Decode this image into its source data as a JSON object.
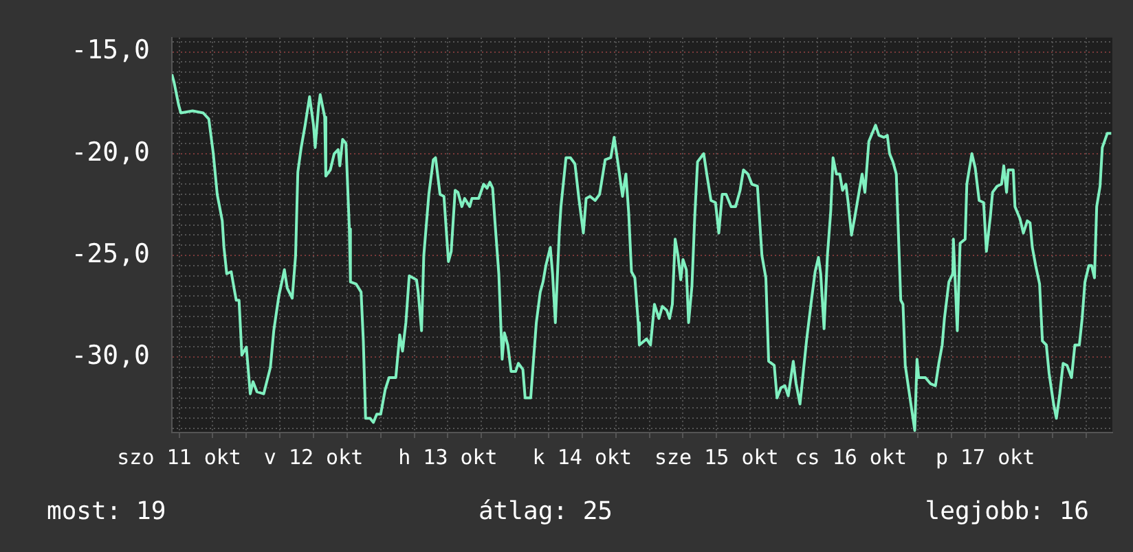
{
  "chart_data": {
    "type": "line",
    "color": "#80f0c0",
    "x": [
      "--10-11T10:42",
      "--10-11T11:06",
      "--10-11T11:54",
      "--10-11T12:18",
      "--10-11T14:24",
      "--10-11T16:18",
      "--10-11T17:18",
      "--10-11T18:06",
      "--10-11T18:48",
      "--10-11T19:42",
      "--10-11T20:00",
      "--10-11T20:30",
      "--10-11T21:18",
      "--10-11T21:48",
      "--10-11T22:12",
      "--10-11T22:42",
      "--10-11T23:12",
      "--10-12T00:00",
      "--10-12T00:42",
      "--10-12T01:12",
      "--10-12T01:54",
      "--10-12T03:06",
      "--10-12T04:18",
      "--10-12T04:54",
      "--10-12T05:48",
      "--10-12T06:48",
      "--10-12T07:18",
      "--10-12T08:12",
      "--10-12T08:48",
      "--10-12T09:12",
      "--10-12T09:48",
      "--10-12T10:30",
      "--10-12T11:18",
      "--10-12T12:00",
      "--10-12T12:18",
      "--10-12T12:54",
      "--10-12T13:12",
      "--10-12T14:00",
      "--10-12T14:12",
      "--10-12T15:00",
      "--10-12T15:42",
      "--10-12T16:24",
      "--10-12T16:42",
      "--10-12T17:12",
      "--10-12T17:48",
      "--10-12T18:24",
      "--10-12T18:36",
      "--10-12T19:36",
      "--10-12T20:30",
      "--10-12T20:54",
      "--10-12T21:18",
      "--10-12T22:06",
      "--10-12T22:42",
      "--10-12T23:18",
      "--10-13T00:00",
      "--10-13T00:48",
      "--10-13T01:30",
      "--10-13T02:42",
      "--10-13T03:24",
      "--10-13T03:54",
      "--10-13T04:30",
      "--10-13T05:06",
      "--10-13T06:24",
      "--10-13T06:42",
      "--10-13T07:18",
      "--10-13T07:42",
      "--10-13T08:36",
      "--10-13T09:24",
      "--10-13T09:48",
      "--10-13T10:36",
      "--10-13T11:18",
      "--10-13T12:06",
      "--10-13T12:36",
      "--10-13T13:18",
      "--10-13T13:48",
      "--10-13T14:30",
      "--10-13T15:00",
      "--10-13T15:54",
      "--10-13T16:18",
      "--10-13T17:30",
      "--10-13T18:24",
      "--10-13T19:00",
      "--10-13T19:30",
      "--10-13T20:00",
      "--10-13T20:24",
      "--10-13T21:06",
      "--10-13T21:42",
      "--10-13T22:06",
      "--10-13T22:42",
      "--10-13T23:18",
      "--10-14T00:06",
      "--10-14T00:36",
      "--10-14T01:24",
      "--10-14T01:48",
      "--10-14T02:48",
      "--10-14T03:12",
      "--10-14T03:48",
      "--10-14T04:30",
      "--10-14T05:00",
      "--10-14T05:30",
      "--10-14T06:18",
      "--10-14T06:42",
      "--10-14T07:12",
      "--10-14T07:54",
      "--10-14T08:12",
      "--10-14T09:06",
      "--10-14T09:54",
      "--10-14T10:42",
      "--10-14T11:24",
      "--10-14T12:12",
      "--10-14T12:42",
      "--10-14T13:24",
      "--10-14T14:18",
      "--10-14T15:06",
      "--10-14T16:06",
      "--10-14T17:06",
      "--10-14T17:42",
      "--10-14T18:18",
      "--10-14T19:12",
      "--10-14T19:48",
      "--10-14T20:18",
      "--10-14T20:48",
      "--10-14T21:24",
      "--10-14T22:00",
      "--10-14T22:12",
      "--10-14T23:30",
      "--10-15T00:12",
      "--10-15T00:54",
      "--10-15T01:42",
      "--10-15T02:18",
      "--10-15T03:06",
      "--10-15T03:36",
      "--10-15T04:06",
      "--10-15T04:36",
      "--10-15T05:06",
      "--10-15T05:36",
      "--10-15T06:00",
      "--10-15T06:36",
      "--10-15T07:00",
      "--10-15T07:36",
      "--10-15T08:06",
      "--10-15T08:36",
      "--10-15T09:42",
      "--10-15T10:18",
      "--10-15T11:00",
      "--10-15T11:48",
      "--10-15T12:24",
      "--10-15T13:00",
      "--10-15T13:42",
      "--10-15T14:36",
      "--10-15T15:24",
      "--10-15T16:12",
      "--10-15T16:48",
      "--10-15T17:36",
      "--10-15T18:18",
      "--10-15T19:18",
      "--10-15T20:06",
      "--10-15T20:48",
      "--10-15T21:18",
      "--10-15T22:18",
      "--10-15T22:48",
      "--10-15T23:30",
      "--10-16T00:12",
      "--10-16T00:48",
      "--10-16T01:42",
      "--10-16T02:12",
      "--10-16T02:54",
      "--10-16T03:30",
      "--10-16T04:06",
      "--10-16T04:54",
      "--10-16T05:36",
      "--10-16T06:12",
      "--10-16T06:36",
      "--10-16T07:12",
      "--10-16T07:48",
      "--10-16T08:24",
      "--10-16T08:48",
      "--10-16T09:24",
      "--10-16T10:00",
      "--10-16T10:30",
      "--10-16T11:06",
      "--10-16T11:30",
      "--10-16T12:06",
      "--10-16T12:42",
      "--10-16T13:30",
      "--10-16T14:00",
      "--10-16T14:30",
      "--10-16T15:12",
      "--10-16T15:30",
      "--10-16T16:24",
      "--10-16T17:00",
      "--10-16T17:54",
      "--10-16T18:30",
      "--10-16T18:54",
      "--10-16T19:30",
      "--10-16T20:06",
      "--10-16T20:24",
      "--10-16T20:54",
      "--10-16T21:18",
      "--10-16T21:42",
      "--10-16T22:36",
      "--10-16T23:24",
      "--10-16T23:48",
      "--10-17T00:06",
      "--10-17T01:18",
      "--10-17T02:12",
      "--10-17T03:06",
      "--10-17T03:42",
      "--10-17T04:18",
      "--10-17T04:42",
      "--10-17T05:30",
      "--10-17T06:12",
      "--10-17T06:18",
      "--10-17T07:00",
      "--10-17T07:30",
      "--10-17T08:24",
      "--10-17T08:42",
      "--10-17T09:36",
      "--10-17T10:12",
      "--10-17T10:54",
      "--10-17T11:42",
      "--10-17T12:12",
      "--10-17T12:54",
      "--10-17T13:18",
      "--10-17T14:06",
      "--10-17T14:54",
      "--10-17T15:18",
      "--10-17T15:48",
      "--10-17T16:06",
      "--10-17T17:00",
      "--10-17T17:18",
      "--10-17T18:12",
      "--10-17T18:48",
      "--10-17T19:30",
      "--10-17T20:00",
      "--10-17T20:24",
      "--10-17T21:00",
      "--10-17T21:42",
      "--10-17T22:12",
      "--10-17T22:54",
      "--10-17T23:24",
      "--10-18T00:12",
      "--10-18T00:42",
      "--10-18T01:18",
      "--10-18T01:54",
      "--10-18T02:36",
      "--10-18T03:24",
      "--10-18T04:00",
      "--10-18T04:48",
      "--10-18T05:18",
      "--10-18T05:48",
      "--10-18T06:30",
      "--10-18T07:00",
      "--10-18T07:30",
      "--10-18T07:54",
      "--10-18T08:30",
      "--10-18T08:54",
      "--10-18T09:48",
      "--10-18T10:30"
    ],
    "values": [
      -16.1,
      -16.5,
      -17.6,
      -18.0,
      -17.9,
      -18.0,
      -18.3,
      -20.0,
      -22.0,
      -23.3,
      -24.6,
      -25.9,
      -25.8,
      -26.6,
      -27.2,
      -27.2,
      -29.9,
      -29.5,
      -31.8,
      -31.2,
      -31.7,
      -31.8,
      -30.5,
      -28.7,
      -27.0,
      -25.7,
      -26.6,
      -27.1,
      -25.0,
      -20.9,
      -19.7,
      -18.6,
      -17.2,
      -18.6,
      -19.7,
      -17.7,
      -17.1,
      -18.2,
      -21.1,
      -20.8,
      -20.0,
      -19.8,
      -20.6,
      -19.3,
      -19.5,
      -23.7,
      -26.3,
      -26.4,
      -26.8,
      -29.2,
      -33.0,
      -33.0,
      -33.2,
      -32.8,
      -32.8,
      -31.6,
      -31.0,
      -31.0,
      -28.9,
      -29.7,
      -28.3,
      -26.0,
      -26.2,
      -26.8,
      -28.7,
      -25.0,
      -22.0,
      -20.3,
      -20.2,
      -22.0,
      -22.1,
      -25.3,
      -24.8,
      -21.8,
      -21.9,
      -22.6,
      -22.2,
      -22.6,
      -22.2,
      -22.2,
      -21.5,
      -21.7,
      -21.4,
      -21.7,
      -23.3,
      -25.9,
      -30.1,
      -28.8,
      -29.4,
      -30.7,
      -30.7,
      -30.3,
      -30.6,
      -32.0,
      -32.0,
      -30.5,
      -28.3,
      -26.8,
      -26.3,
      -25.5,
      -24.6,
      -25.9,
      -28.3,
      -23.9,
      -22.6,
      -20.2,
      -20.2,
      -20.5,
      -22.2,
      -23.9,
      -22.2,
      -22.1,
      -22.3,
      -22.0,
      -20.3,
      -20.2,
      -19.2,
      -20.3,
      -22.1,
      -21.0,
      -22.9,
      -25.8,
      -26.1,
      -28.3,
      -29.4,
      -29.1,
      -29.4,
      -27.4,
      -28.1,
      -27.5,
      -27.7,
      -28.1,
      -27.4,
      -24.2,
      -25.0,
      -26.2,
      -25.2,
      -25.7,
      -28.3,
      -26.5,
      -23.1,
      -20.4,
      -20.0,
      -21.1,
      -22.3,
      -22.4,
      -23.9,
      -22.0,
      -22.0,
      -22.6,
      -22.6,
      -21.8,
      -20.8,
      -21.0,
      -21.5,
      -21.6,
      -25.0,
      -26.1,
      -30.2,
      -30.4,
      -32.0,
      -31.5,
      -31.4,
      -31.9,
      -30.2,
      -31.3,
      -32.3,
      -30.7,
      -29.1,
      -27.3,
      -25.8,
      -25.1,
      -25.9,
      -28.6,
      -25.0,
      -22.8,
      -20.2,
      -21.0,
      -21.0,
      -21.8,
      -21.5,
      -22.4,
      -24.0,
      -23.1,
      -21.8,
      -21.0,
      -21.9,
      -19.4,
      -19.2,
      -18.6,
      -19.1,
      -19.2,
      -19.1,
      -20.0,
      -20.4,
      -21.0,
      -23.3,
      -27.2,
      -27.4,
      -30.4,
      -32.1,
      -33.6,
      -30.1,
      -31.0,
      -31.0,
      -31.3,
      -31.4,
      -30.3,
      -29.4,
      -28.1,
      -26.3,
      -25.9,
      -24.2,
      -28.7,
      -24.4,
      -24.2,
      -21.5,
      -20.0,
      -20.7,
      -22.3,
      -22.4,
      -24.8,
      -23.1,
      -21.9,
      -21.6,
      -21.5,
      -20.6,
      -21.9,
      -20.8,
      -20.8,
      -22.6,
      -23.2,
      -23.9,
      -23.3,
      -23.4,
      -24.6,
      -25.5,
      -26.4,
      -29.2,
      -29.4,
      -30.8,
      -32.3,
      -33.0,
      -31.8,
      -30.3,
      -30.4,
      -31.0,
      -29.4,
      -29.4,
      -28.1,
      -26.3,
      -25.5,
      -25.5,
      -26.1,
      -22.6,
      -21.6,
      -19.7,
      -19.0,
      -19.0
    ],
    "xlim": [
      "--10-11T10:42",
      "--10-18T10:42"
    ],
    "ylim": [
      -33.7,
      -14.3
    ],
    "xticks": [
      {
        "value": "--10-11T12:00",
        "label": "szo 11 okt"
      },
      {
        "value": "--10-11T18:00",
        "label": null
      },
      {
        "value": "--10-12T00:00",
        "label": null
      },
      {
        "value": "--10-12T06:00",
        "label": null
      },
      {
        "value": "--10-12T12:00",
        "label": "v 12 okt"
      },
      {
        "value": "--10-12T18:00",
        "label": null
      },
      {
        "value": "--10-13T00:00",
        "label": null
      },
      {
        "value": "--10-13T06:00",
        "label": null
      },
      {
        "value": "--10-13T12:00",
        "label": "h 13 okt"
      },
      {
        "value": "--10-13T18:00",
        "label": null
      },
      {
        "value": "--10-14T00:00",
        "label": null
      },
      {
        "value": "--10-14T06:00",
        "label": null
      },
      {
        "value": "--10-14T12:00",
        "label": "k 14 okt"
      },
      {
        "value": "--10-14T18:00",
        "label": null
      },
      {
        "value": "--10-15T00:00",
        "label": null
      },
      {
        "value": "--10-15T06:00",
        "label": null
      },
      {
        "value": "--10-15T12:00",
        "label": "sze 15 okt"
      },
      {
        "value": "--10-15T18:00",
        "label": null
      },
      {
        "value": "--10-16T00:00",
        "label": null
      },
      {
        "value": "--10-16T06:00",
        "label": null
      },
      {
        "value": "--10-16T12:00",
        "label": "cs 16 okt"
      },
      {
        "value": "--10-16T18:00",
        "label": null
      },
      {
        "value": "--10-17T00:00",
        "label": null
      },
      {
        "value": "--10-17T06:00",
        "label": null
      },
      {
        "value": "--10-17T12:00",
        "label": "p 17 okt"
      },
      {
        "value": "--10-17T18:00",
        "label": null
      },
      {
        "value": "--10-18T00:00",
        "label": null
      },
      {
        "value": "--10-18T06:00",
        "label": null
      }
    ],
    "yticks": [
      {
        "value": -33.5,
        "label": null
      },
      {
        "value": -33,
        "label": null
      },
      {
        "value": -32.5,
        "label": null
      },
      {
        "value": -32,
        "label": null
      },
      {
        "value": -31.5,
        "label": null
      },
      {
        "value": -31,
        "label": null
      },
      {
        "value": -30.5,
        "label": null
      },
      {
        "value": -30,
        "label": "-30,0"
      },
      {
        "value": -29.5,
        "label": null
      },
      {
        "value": -29,
        "label": null
      },
      {
        "value": -28.5,
        "label": null
      },
      {
        "value": -28,
        "label": null
      },
      {
        "value": -27.5,
        "label": null
      },
      {
        "value": -27,
        "label": null
      },
      {
        "value": -26.5,
        "label": null
      },
      {
        "value": -26,
        "label": null
      },
      {
        "value": -25.5,
        "label": null
      },
      {
        "value": -25,
        "label": "-25,0"
      },
      {
        "value": -24.5,
        "label": null
      },
      {
        "value": -24,
        "label": null
      },
      {
        "value": -23.5,
        "label": null
      },
      {
        "value": -23,
        "label": null
      },
      {
        "value": -22.5,
        "label": null
      },
      {
        "value": -22,
        "label": null
      },
      {
        "value": -21.5,
        "label": null
      },
      {
        "value": -21,
        "label": null
      },
      {
        "value": -20.5,
        "label": null
      },
      {
        "value": -20,
        "label": "-20,0"
      },
      {
        "value": -19.5,
        "label": null
      },
      {
        "value": -19,
        "label": null
      },
      {
        "value": -18.5,
        "label": null
      },
      {
        "value": -18,
        "label": null
      },
      {
        "value": -17.5,
        "label": null
      },
      {
        "value": -17,
        "label": null
      },
      {
        "value": -16.5,
        "label": null
      },
      {
        "value": -16,
        "label": null
      },
      {
        "value": -15.5,
        "label": null
      },
      {
        "value": -15,
        "label": "-15,0"
      },
      {
        "value": -14.5,
        "label": null
      }
    ],
    "grid": true,
    "legend": false,
    "marker": "none",
    "line_style": "solid",
    "annotations": [
      "most: 19",
      "átlag: 25",
      "legjobb: 16"
    ]
  }
}
